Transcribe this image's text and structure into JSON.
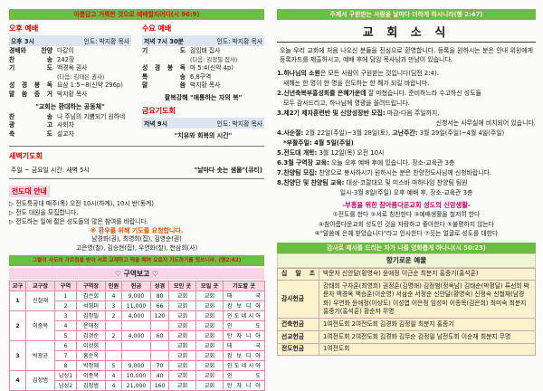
{
  "colors": {
    "banner_green": "#6dbd45",
    "banner_text_red": "#cc2200",
    "banner_text_light": "#ffe9e4",
    "section_red": "#d40000",
    "highlight_blue": "#dce6f2",
    "pink_bar": "#f8d5e6",
    "table_header_pink": "#fbd9e3",
    "table_border": "#d98ca6",
    "offering_bg": "#fdf3cf",
    "offering_title_bg": "#eef4d5",
    "orange": "#e55300",
    "magenta": "#c0006a"
  },
  "left_page": {
    "banner": "아름답고 거룩한 것으로 예배할지어다(시 96:9)",
    "afternoon": {
      "title": "오후 예배",
      "time": "오후 3시",
      "leader": "인도: 박지황 목사",
      "items": [
        {
          "label": "경배와 찬양",
          "value": "다같이"
        },
        {
          "label": "찬 송",
          "value": "242장"
        },
        {
          "label": "기 도",
          "value": "백경옥 권사",
          "value2": "(다음: 김태은 권사)"
        },
        {
          "label": "성 경 봉 독",
          "value": "요삼 1:5~8(신약 296p)"
        },
        {
          "label": "말 씀 증 거",
          "value": "박지황 목사"
        }
      ],
      "sermon": "\"교회는 환대하는 공동체\"",
      "items2": [
        {
          "label": "찬 송",
          "value": "나 주님의 기쁨되기 원하네"
        },
        {
          "label": "광 고",
          "value": "사회자"
        },
        {
          "label": "축 도",
          "value": "설교자"
        }
      ]
    },
    "wednesday": {
      "title": "수요 예배",
      "time": "저녁 7시 30분",
      "leader": "인도: 박지황 목사",
      "items": [
        {
          "label": "기 도",
          "value": "김임태 집사",
          "value2": "(다음: 김정필 집사)"
        },
        {
          "label": "성 경 봉 독",
          "value": "마 5:4(신약 4p)"
        },
        {
          "label": "특 송",
          "value": "6,8구역"
        },
        {
          "label": "말 씀",
          "value": "박지황 목사"
        }
      ],
      "sermon": "팔복강해 \"애통하는 자의 복\""
    },
    "friday": {
      "title": "금요기도회",
      "time": "저녁 9시",
      "leader": "인도: 박지황 목사",
      "subtitle": "\"치유와 회복의 시간\""
    },
    "dawn": {
      "title": "새벽기도회",
      "schedule": "주일 ~ 금요일 시간: 새벽 5시",
      "note": "\"날마다 솟는 샘물\"(큐티)"
    },
    "evangelism": {
      "title": "전도대 안내",
      "items": [
        "▷ 전도특공대 매주(목) 오전 10시(하계), 10시 반(동계)",
        "▷ 전도 대원을 모집합니다.",
        "▷ 전도하는 일에 젊은 성도들의 많은 참여를 바랍니다."
      ],
      "prayer_request": "※ 환우를 위해 기도를 요청합니다.",
      "prayer_names": [
        "남경화(권), 최영희(집), 김영순(권)",
        "고은영(찰), 김승현(집), 우연화(찰), 천삼희(사)"
      ]
    },
    "banner2": "그들이 사도의 가르침을 받아 서로 교제하고 떡을 떼며 오로지 기도하기를 힘쓰니라. (행2:42)",
    "district": {
      "title": "♡ 구역보고 ♡",
      "headers": [
        "교구",
        "교구장",
        "구역",
        "구역장",
        "인원",
        "헌금",
        "성경",
        "모인 곳",
        "모일 곳",
        "기도할 곳"
      ],
      "groups": [
        {
          "district": "1",
          "leader": "신철재",
          "rows": [
            [
              "1",
              "김은희",
              "4",
              "9,000",
              "80",
              "교회",
              "교회",
              "태 국"
            ],
            [
              "2",
              "석영미",
              "3",
              "11,000",
              "66",
              "교회",
              "교회",
              "캄 보 디 아"
            ]
          ]
        },
        {
          "district": "2",
          "leader": "이종목",
          "rows": [
            [
              "3",
              "김정필",
              "2",
              "4,000",
              "120",
              "교회",
              "교회",
              "인 도 네 시 아"
            ],
            [
              "4",
              "온애정",
              "",
              "",
              "",
              "교회",
              "교회",
              "인 도"
            ],
            [
              "5",
              "김경순",
              "2",
              "4,000",
              "60",
              "교회",
              "교회",
              "탄 자 니 아"
            ]
          ]
        },
        {
          "district": "3",
          "leader": "박광균",
          "rows": [
            [
              "6",
              "이성희",
              "",
              "",
              "",
              "교회",
              "교회",
              "태 국"
            ],
            [
              "7",
              "홍순옥",
              "",
              "",
              "",
              "교회",
              "교회",
              "캄 보 디 아"
            ],
            [
              "8",
              "박정혜",
              "5",
              "9,000",
              "70",
              "교회",
              "교회",
              "인 도 네 시 아"
            ]
          ]
        },
        {
          "district": "4",
          "leader": "김정범",
          "rows": [
            [
              "남성1",
              "이종목",
              "4",
              "10,000",
              "40",
              "교회",
              "교회",
              "인 도"
            ],
            [
              "남성2",
              "김정범",
              "4",
              "21,000",
              "160",
              "교회",
              "교회",
              "탄 자 니 아"
            ]
          ]
        }
      ]
    }
  },
  "right_page": {
    "banner": "주께서 구원받는 사람을 날마다 더하게 하시니라(행 2:47)",
    "title": "교 회 소 식",
    "welcome": "오늘 우리 교회에 처음 나오신 분들을 진심으로 환영합니다. 등록을 원하시는 분은 안내 위원에게 등록카드를 제출하시고, 예배 후에 담임 목사님과 만남이 있습니다.",
    "announcements": [
      {
        "segs": [
          {
            "b": 1,
            "t": "1.하나님의 소원"
          },
          {
            "t": "은 모든 사람이 구원받는 것입니다(딤전 2:4)."
          }
        ]
      },
      {
        "segs": [
          {
            "t": "새해는 한 명이 한 명을 전도하는 한 해가 되길 바랍니다."
          }
        ],
        "cls": "indent"
      },
      {
        "segs": [
          {
            "b": 1,
            "t": "2.신년축복부흥성회를 은혜가운데"
          },
          {
            "t": " 잘 마쳤습니다. 준비하느라 수고하신 성도들"
          }
        ]
      },
      {
        "segs": [
          {
            "t": "모두 감사드리고, 하나님께 영광을 올려드립니다."
          }
        ],
        "cls": "indent"
      },
      {
        "segs": [
          {
            "b": 1,
            "t": "3.제2기 제자훈련반 및 신앙성장반 모집:"
          },
          {
            "t": " 마감-다음 주일까지,"
          }
        ]
      },
      {
        "segs": [
          {
            "t": "신청서는 사무실에 비치되어 있습니다."
          }
        ],
        "cls": "right"
      },
      {
        "segs": [
          {
            "b": 1,
            "t": "4.사순절:"
          },
          {
            "t": " 2월 22일(주일)~3월 28일(토), "
          },
          {
            "b": 1,
            "t": "고난주간:"
          },
          {
            "t": " 3월 29일(주일)~4월 4일(주일)"
          }
        ]
      },
      {
        "segs": [
          {
            "b": 1,
            "t": "*부활주일: 4월 5일(주일)"
          }
        ],
        "cls": "indent"
      },
      {
        "segs": [
          {
            "b": 1,
            "t": "5.전도대 개학:"
          },
          {
            "t": " 3월 12일(목) 오전 10시"
          }
        ]
      },
      {
        "segs": [
          {
            "b": 1,
            "t": "6.3월 구역장 교육:"
          },
          {
            "t": " 오늘 오후 예배 후에 있습니다. 장소-교육관 3층"
          }
        ]
      },
      {
        "segs": [
          {
            "b": 1,
            "t": "7.찬양팀 모집:"
          },
          {
            "t": " 찬양으로 봉사하시기 원하시는 분은 찬양전도사님께 신청바랍니다."
          }
        ]
      },
      {
        "segs": [
          {
            "b": 1,
            "t": "8.찬양단 및 찬양팀 교육:"
          },
          {
            "t": " 대상-코랄대오 및 미스바 마하나임 찬양팀 팀원"
          }
        ]
      },
      {
        "segs": [
          {
            "t": "일시-3월 8일(주일) 오후 예배 후, 장소-교육관 3층"
          }
        ],
        "cls": "centered"
      }
    ],
    "faith": {
      "title": "-부흥을 위한 참아름다운교회 성도의 신앙생활-",
      "lines": [
        "①전도를 한다 ②서로 칭찬한다 ③예배생활을 철저히 한다",
        "④참아름다운교회 성도인 것을 자랑하고 좋아한다 ⑤불평하지 않는다",
        "⑥\"말씀에 은혜 받았습니다\"라고 인사한다 ⑦웃는 얼굴로 성도를 대한다"
      ]
    },
    "offerings": {
      "banner": "감사로 제사를 드리는 자가 나를 영화롭게 하나니(시 50:23)",
      "title": "향기로운 예물",
      "rows": [
        {
          "label": "십 일 조",
          "names": "박문자 신안달(황영숙) 윤애정 이근순 최분지 홍중기(홍석훈)"
        },
        {
          "label": "감사헌금",
          "names": "강태희 구자훈(최영희) 권정훈(김명애) 김정범(정옥남) 김태순(박정달) 류선희 박문자 백경옥 백승훈(이순영) 서삼순 서정순 신안달(황영숙) 신정숙 신철재(남경화) 우연화 윤애정(이상도) 이성엽 이은정 임성미 이종목(김은희) 최미숙 최분지 홍중기(홍석훈) 황순자 무명"
        },
        {
          "label": "건축헌금",
          "names": "1여전도회 2여전도회 김경화 김정필 최분지 홍중기"
        },
        {
          "label": "선교헌금",
          "names": "1여전도회 2여전도회 김경화 김무순 김정필 남전도회 이순재 최분지 무명"
        },
        {
          "label": "전도헌금",
          "names": "1여전도회"
        }
      ]
    }
  }
}
